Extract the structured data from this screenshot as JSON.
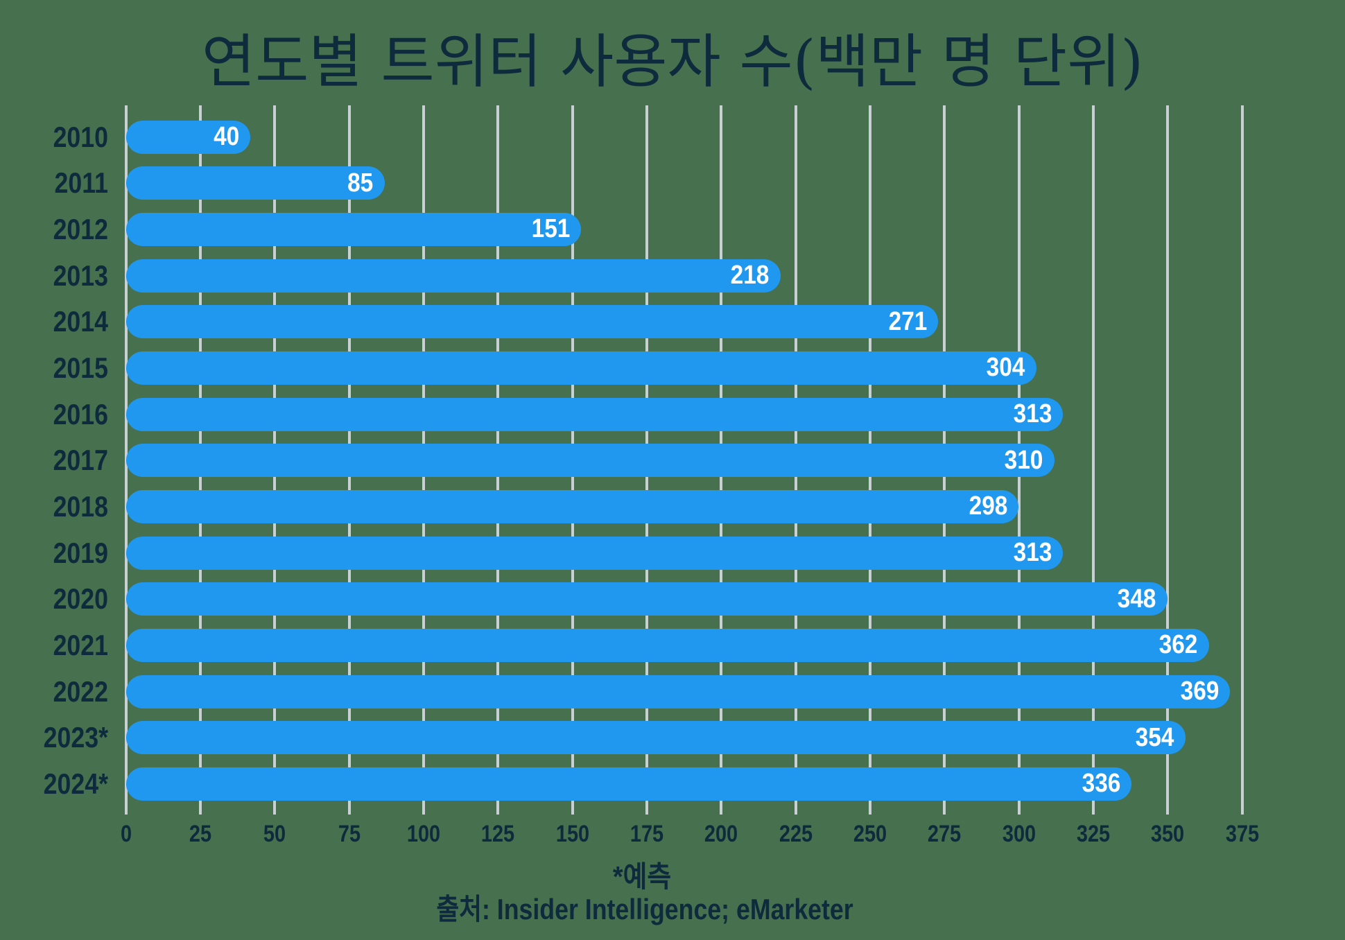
{
  "title": "연도별 트위터 사용자 수(백만 명 단위)",
  "footnote": "*예측",
  "source": "출처: Insider Intelligence; eMarketer",
  "colors": {
    "background": "#47704E",
    "bar": "#2098F0",
    "gridline": "#C9D0D4",
    "text": "#0D2B3C",
    "bar_label": "#FFFFFF"
  },
  "chart_data": {
    "type": "bar",
    "orientation": "horizontal",
    "title": "연도별 트위터 사용자 수(백만 명 단위)",
    "categories": [
      "2010",
      "2011",
      "2012",
      "2013",
      "2014",
      "2015",
      "2016",
      "2017",
      "2018",
      "2019",
      "2020",
      "2021",
      "2022",
      "2023*",
      "2024*"
    ],
    "values": [
      40,
      85,
      151,
      218,
      271,
      304,
      313,
      310,
      298,
      313,
      348,
      362,
      369,
      354,
      336
    ],
    "xlim": [
      0,
      375
    ],
    "xticks": [
      0,
      25,
      50,
      75,
      100,
      125,
      150,
      175,
      200,
      225,
      250,
      275,
      300,
      325,
      350,
      375
    ],
    "xlabel": "",
    "ylabel": "",
    "grid": "vertical",
    "value_label_position": "inside-end",
    "footnote": "*예측",
    "source": "출처: Insider Intelligence; eMarketer"
  }
}
